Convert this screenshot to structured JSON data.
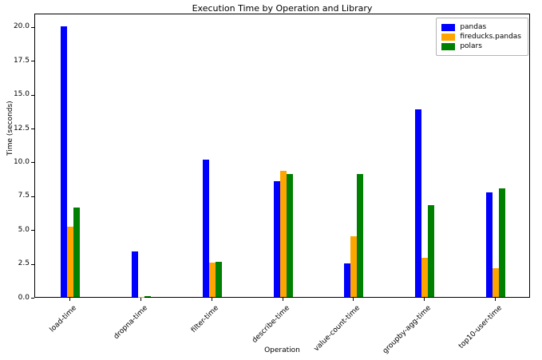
{
  "chart_data": {
    "type": "bar",
    "title": "Execution Time by Operation and Library",
    "xlabel": "Operation",
    "ylabel": "Time (seconds)",
    "categories": [
      "load-time",
      "dropna-time",
      "filter-time",
      "describe-time",
      "value-count-time",
      "groupby-agg-time",
      "top10-user-time"
    ],
    "series": [
      {
        "name": "pandas",
        "color": "#0000ff",
        "values": [
          20.0,
          3.35,
          10.15,
          8.55,
          2.5,
          13.85,
          7.7
        ]
      },
      {
        "name": "fireducks.pandas",
        "color": "#ffa500",
        "values": [
          5.2,
          0.02,
          2.55,
          9.35,
          4.5,
          2.9,
          2.15
        ]
      },
      {
        "name": "polars",
        "color": "#008000",
        "values": [
          6.6,
          0.08,
          2.6,
          9.1,
          9.1,
          6.8,
          8.0
        ]
      }
    ],
    "ylim": [
      0,
      21
    ],
    "yticks": [
      "0.0",
      "2.5",
      "5.0",
      "7.5",
      "10.0",
      "12.5",
      "15.0",
      "17.5",
      "20.0"
    ],
    "grid": false,
    "legend_position": "upper right"
  }
}
